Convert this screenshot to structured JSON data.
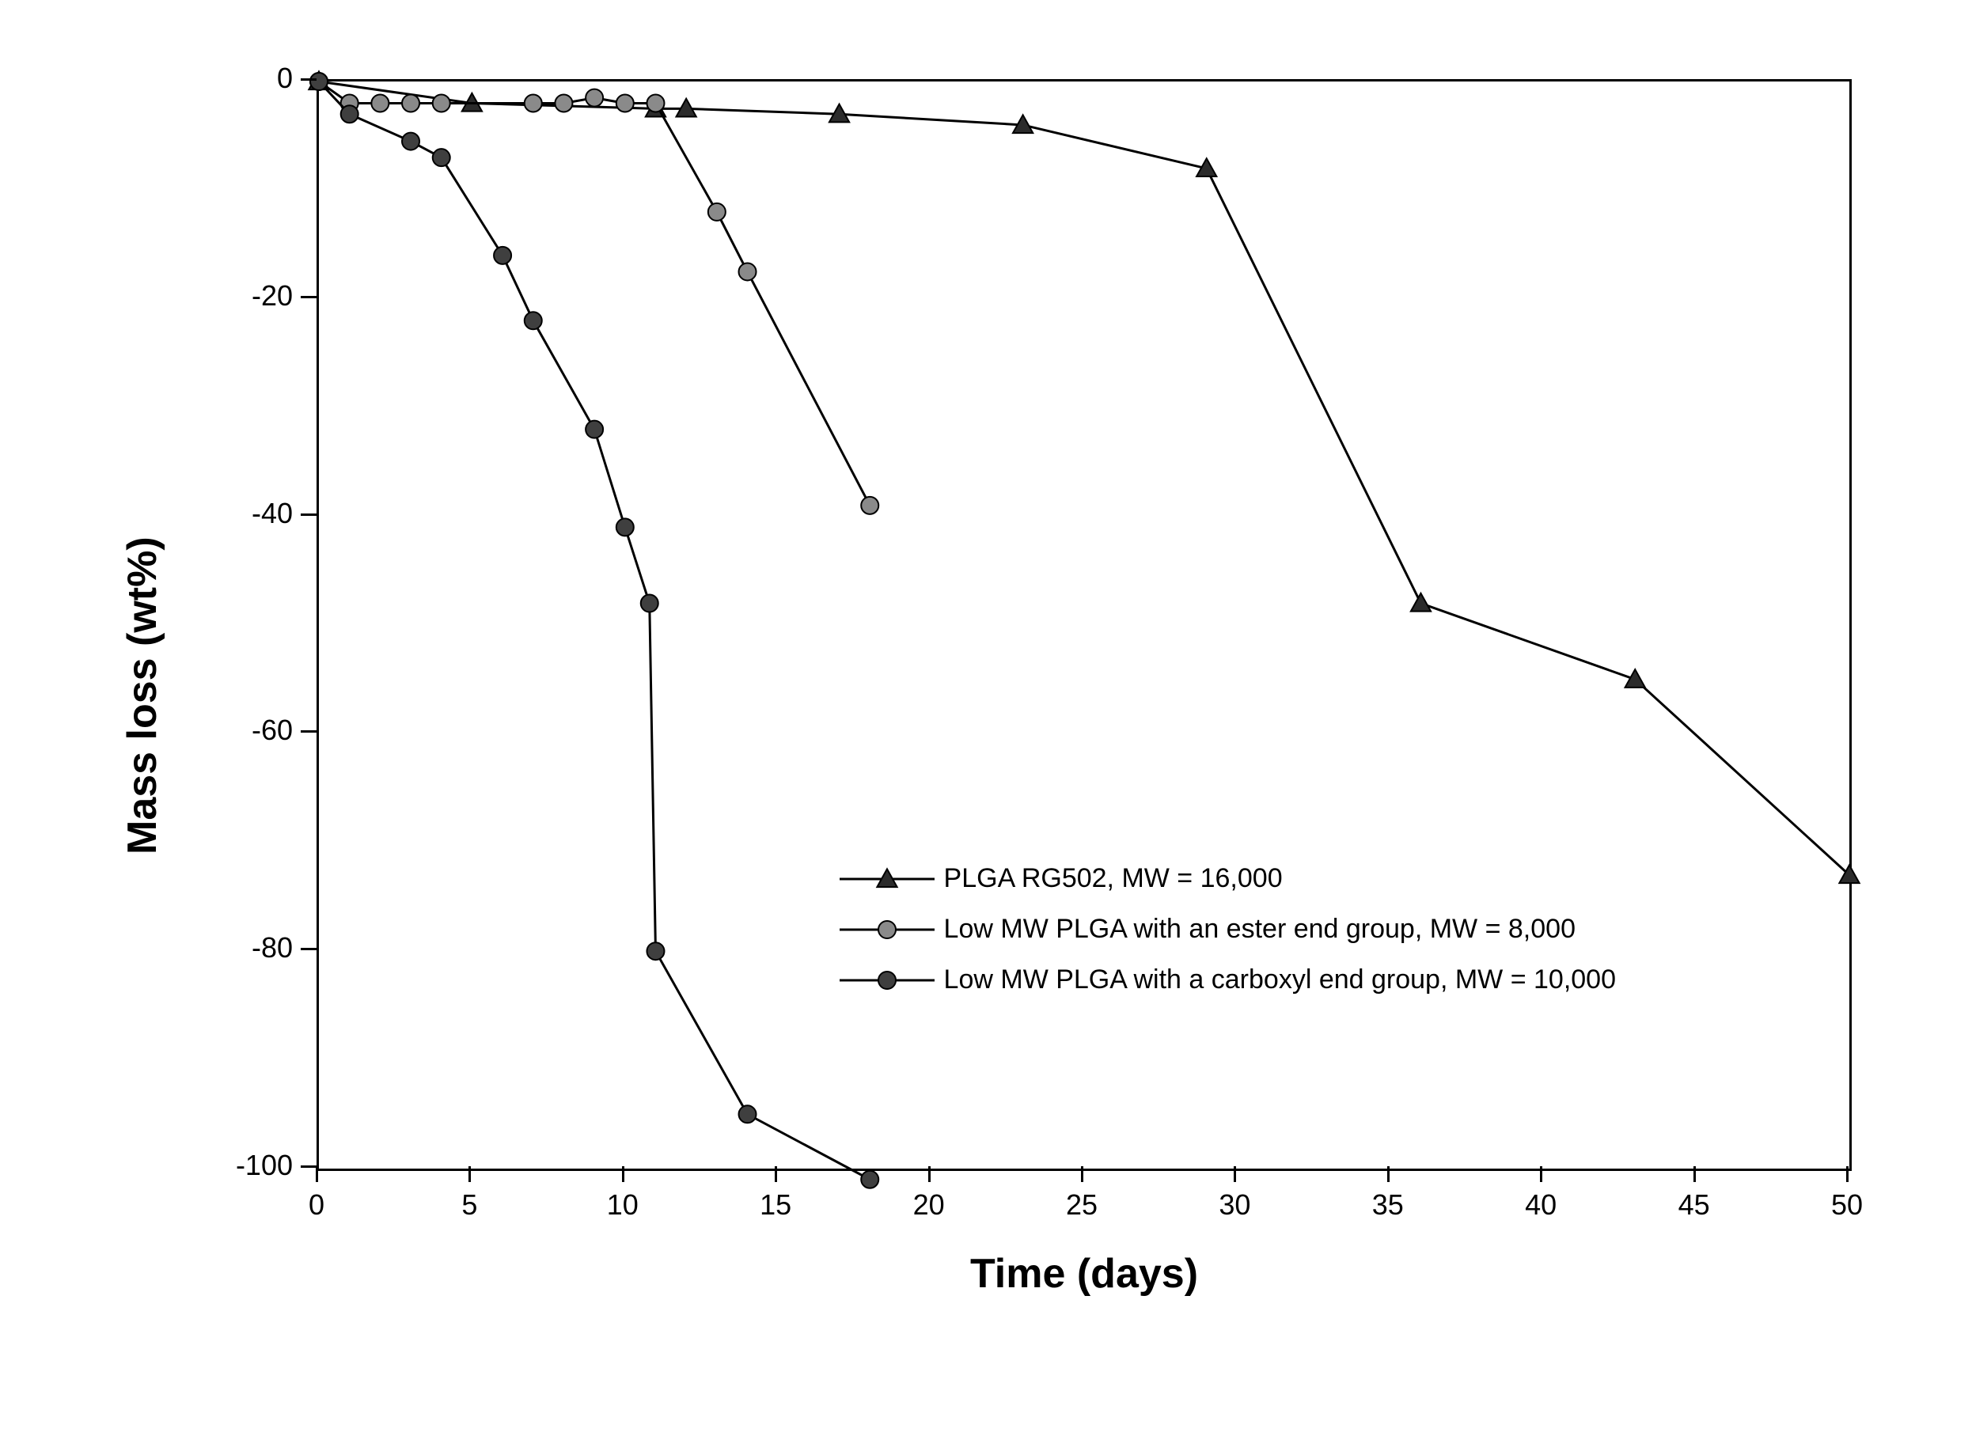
{
  "chart": {
    "type": "line",
    "background_color": "#ffffff",
    "border_color": "#000000",
    "border_width": 3,
    "xlim": [
      0,
      50
    ],
    "ylim": [
      -100,
      0
    ],
    "xtick_step": 5,
    "ytick_step": 20,
    "x_ticks": [
      0,
      5,
      10,
      15,
      20,
      25,
      30,
      35,
      40,
      45,
      50
    ],
    "y_ticks": [
      0,
      -20,
      -40,
      -60,
      -80,
      -100
    ],
    "xlabel": "Time (days)",
    "ylabel": "Mass loss (wt%)",
    "label_fontsize": 52,
    "tick_fontsize": 36,
    "line_width": 3,
    "marker_size": 22,
    "legend": {
      "x_days": 17,
      "y_wt": -71,
      "fontsize": 34,
      "row_spacing": 64
    },
    "series": [
      {
        "id": "plga_rg502",
        "label": "PLGA RG502, MW = 16,000",
        "marker": "triangle",
        "line_color": "#000000",
        "marker_fill": "#2b2b2b",
        "marker_stroke": "#000000",
        "data": [
          {
            "x": 0,
            "y": 0
          },
          {
            "x": 5,
            "y": -2
          },
          {
            "x": 11,
            "y": -2.5
          },
          {
            "x": 12,
            "y": -2.5
          },
          {
            "x": 17,
            "y": -3
          },
          {
            "x": 23,
            "y": -4
          },
          {
            "x": 29,
            "y": -8
          },
          {
            "x": 36,
            "y": -48
          },
          {
            "x": 43,
            "y": -55
          },
          {
            "x": 50,
            "y": -73
          }
        ]
      },
      {
        "id": "low_mw_ester",
        "label": "Low MW PLGA with an ester end group, MW = 8,000",
        "marker": "circle",
        "line_color": "#000000",
        "marker_fill": "#8a8a8a",
        "marker_stroke": "#000000",
        "data": [
          {
            "x": 0,
            "y": 0
          },
          {
            "x": 1,
            "y": -2
          },
          {
            "x": 2,
            "y": -2
          },
          {
            "x": 3,
            "y": -2
          },
          {
            "x": 4,
            "y": -2
          },
          {
            "x": 7,
            "y": -2
          },
          {
            "x": 8,
            "y": -2
          },
          {
            "x": 9,
            "y": -1.5
          },
          {
            "x": 10,
            "y": -2
          },
          {
            "x": 11,
            "y": -2
          },
          {
            "x": 13,
            "y": -12
          },
          {
            "x": 14,
            "y": -17.5
          },
          {
            "x": 18,
            "y": -39
          }
        ]
      },
      {
        "id": "low_mw_carboxyl",
        "label": "Low MW PLGA with a carboxyl end group, MW = 10,000",
        "marker": "circle",
        "line_color": "#000000",
        "marker_fill": "#3f3f3f",
        "marker_stroke": "#000000",
        "data": [
          {
            "x": 0,
            "y": 0
          },
          {
            "x": 1,
            "y": -3
          },
          {
            "x": 3,
            "y": -5.5
          },
          {
            "x": 4,
            "y": -7
          },
          {
            "x": 6,
            "y": -16
          },
          {
            "x": 7,
            "y": -22
          },
          {
            "x": 9,
            "y": -32
          },
          {
            "x": 10,
            "y": -41
          },
          {
            "x": 10.8,
            "y": -48
          },
          {
            "x": 11,
            "y": -80
          },
          {
            "x": 14,
            "y": -95
          },
          {
            "x": 18,
            "y": -101
          }
        ]
      }
    ]
  }
}
